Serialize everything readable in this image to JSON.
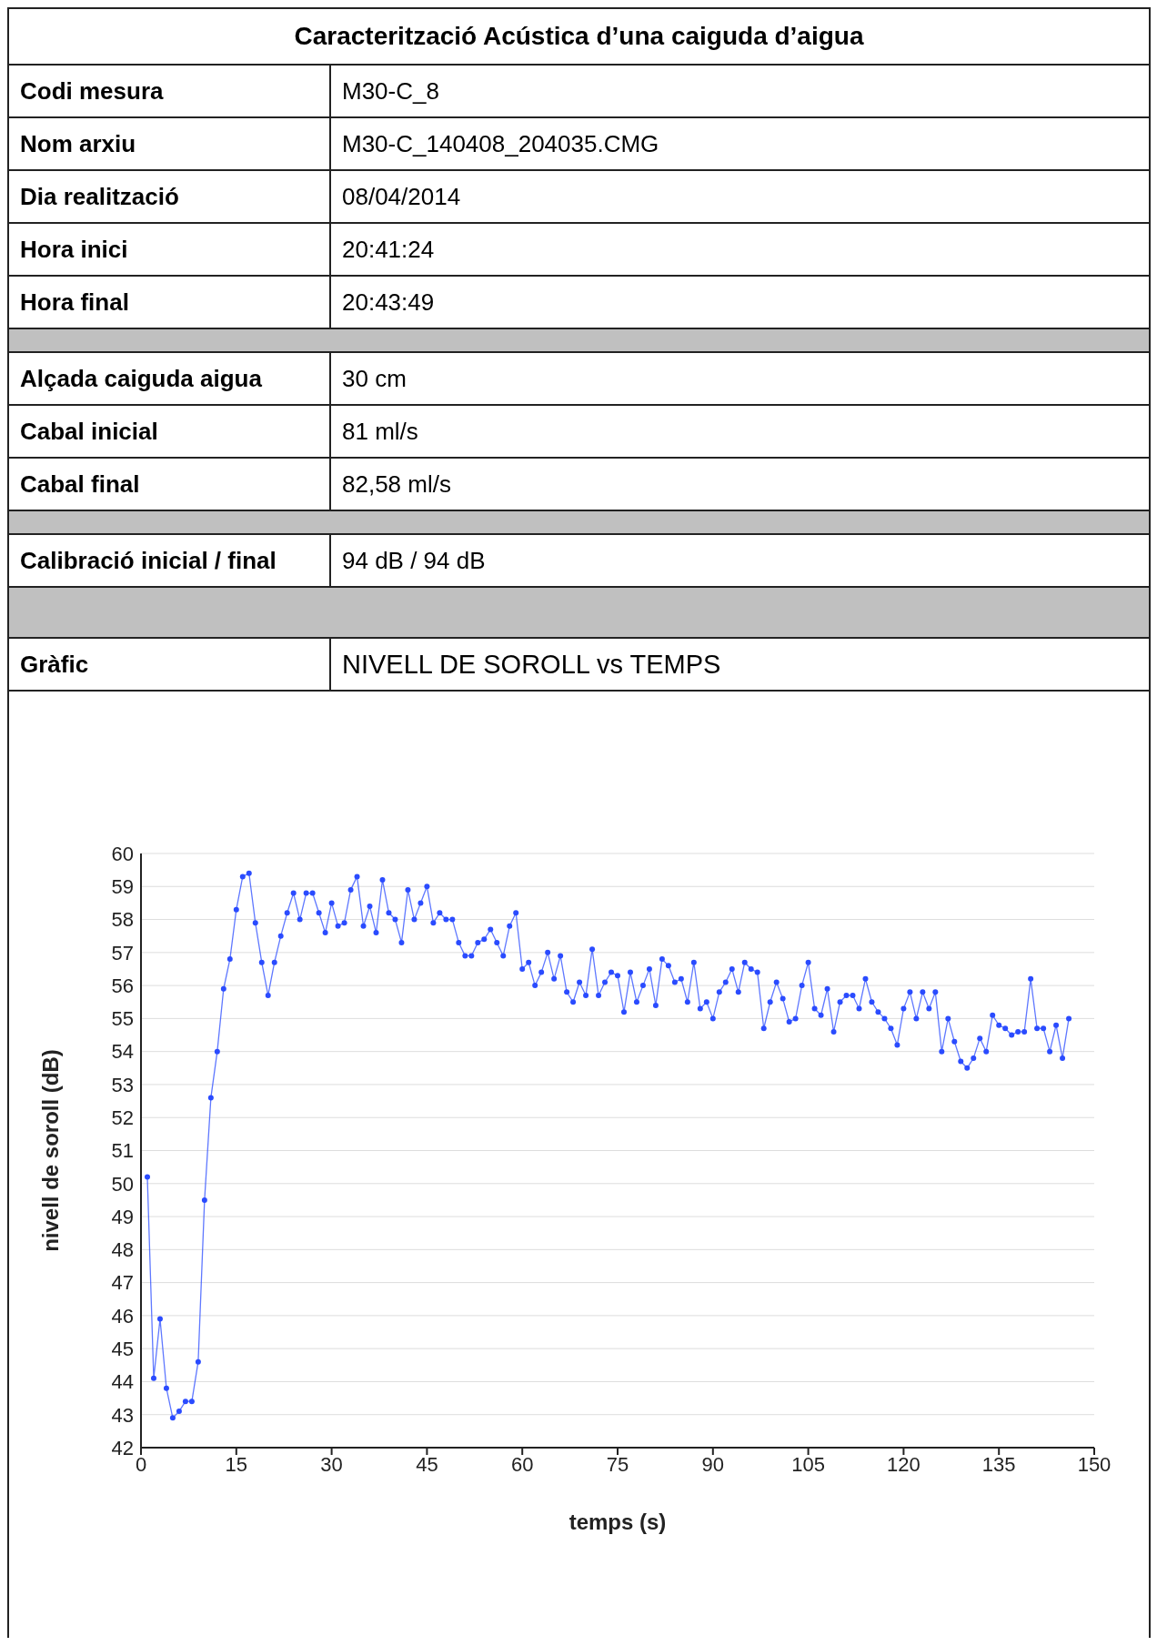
{
  "chart_data": {
    "type": "line",
    "title": "Caracterització Acústica d’una caiguda d’aigua",
    "annotations": [
      "Codi mesura",
      "M30-C_8",
      "Nom arxiu",
      "M30-C_140408_204035.CMG",
      "Dia realització",
      "08/04/2014",
      "Hora inici",
      "20:41:24",
      "Hora final",
      "20:43:49",
      "Alçada caiguda aigua",
      "30 cm",
      "Cabal inicial",
      "81 ml/s",
      "Cabal final",
      "82,58 ml/s",
      "Calibració inicial / final",
      "94 dB / 94 dB",
      "Gràfic",
      "NIVELL DE SOROLL vs TEMPS"
    ],
    "xlabel": "temps (s)",
    "ylabel": "nivell de soroll (dB)",
    "x": [
      1,
      2,
      3,
      4,
      5,
      6,
      7,
      8,
      9,
      10,
      11,
      12,
      13,
      14,
      15,
      16,
      17,
      18,
      19,
      20,
      21,
      22,
      23,
      24,
      25,
      26,
      27,
      28,
      29,
      30,
      31,
      32,
      33,
      34,
      35,
      36,
      37,
      38,
      39,
      40,
      41,
      42,
      43,
      44,
      45,
      46,
      47,
      48,
      49,
      50,
      51,
      52,
      53,
      54,
      55,
      56,
      57,
      58,
      59,
      60,
      61,
      62,
      63,
      64,
      65,
      66,
      67,
      68,
      69,
      70,
      71,
      72,
      73,
      74,
      75,
      76,
      77,
      78,
      79,
      80,
      81,
      82,
      83,
      84,
      85,
      86,
      87,
      88,
      89,
      90,
      91,
      92,
      93,
      94,
      95,
      96,
      97,
      98,
      99,
      100,
      101,
      102,
      103,
      104,
      105,
      106,
      107,
      108,
      109,
      110,
      111,
      112,
      113,
      114,
      115,
      116,
      117,
      118,
      119,
      120,
      121,
      122,
      123,
      124,
      125,
      126,
      127,
      128,
      129,
      130,
      131,
      132,
      133,
      134,
      135,
      136,
      137,
      138,
      139,
      140,
      141,
      142,
      143,
      144,
      145,
      146
    ],
    "series": [
      {
        "color": "#2a4bff",
        "values": [
          50.2,
          44.1,
          45.9,
          43.8,
          42.9,
          43.1,
          43.4,
          43.4,
          44.6,
          49.5,
          52.6,
          54.0,
          55.9,
          56.8,
          58.3,
          59.3,
          59.4,
          57.9,
          56.7,
          55.7,
          56.7,
          57.5,
          58.2,
          58.8,
          58.0,
          58.8,
          58.8,
          58.2,
          57.6,
          58.5,
          57.8,
          57.9,
          58.9,
          59.3,
          57.8,
          58.4,
          57.6,
          59.2,
          58.2,
          58.0,
          57.3,
          58.9,
          58.0,
          58.5,
          59.0,
          57.9,
          58.2,
          58.0,
          58.0,
          57.3,
          56.9,
          56.9,
          57.3,
          57.4,
          57.7,
          57.3,
          56.9,
          57.8,
          58.2,
          56.5,
          56.7,
          56.0,
          56.4,
          57.0,
          56.2,
          56.9,
          55.8,
          55.5,
          56.1,
          55.7,
          57.1,
          55.7,
          56.1,
          56.4,
          56.3,
          55.2,
          56.4,
          55.5,
          56.0,
          56.5,
          55.4,
          56.8,
          56.6,
          56.1,
          56.2,
          55.5,
          56.7,
          55.3,
          55.5,
          55.0,
          55.8,
          56.1,
          56.5,
          55.8,
          56.7,
          56.5,
          56.4,
          54.7,
          55.5,
          56.1,
          55.6,
          54.9,
          55.0,
          56.0,
          56.7,
          55.3,
          55.1,
          55.9,
          54.6,
          55.5,
          55.7,
          55.7,
          55.3,
          56.2,
          55.5,
          55.2,
          55.0,
          54.7,
          54.2,
          55.3,
          55.8,
          55.0,
          55.8,
          55.3,
          55.8,
          54.0,
          55.0,
          54.3,
          53.7,
          53.5,
          53.8,
          54.4,
          54.0,
          55.1,
          54.8,
          54.7,
          54.5,
          54.6,
          54.6,
          56.2,
          54.7,
          54.7,
          54.0,
          54.8,
          53.8,
          55.0
        ]
      }
    ],
    "xlim": [
      0,
      150
    ],
    "xticks": [
      0,
      15,
      30,
      45,
      60,
      75,
      90,
      105,
      120,
      135,
      150
    ],
    "ylim": [
      42,
      60
    ],
    "yticks": [
      42,
      43,
      44,
      45,
      46,
      47,
      48,
      49,
      50,
      51,
      52,
      53,
      54,
      55,
      56,
      57,
      58,
      59,
      60
    ],
    "grid": "y",
    "marker": "circle",
    "line_style": "solid",
    "legend": false
  }
}
